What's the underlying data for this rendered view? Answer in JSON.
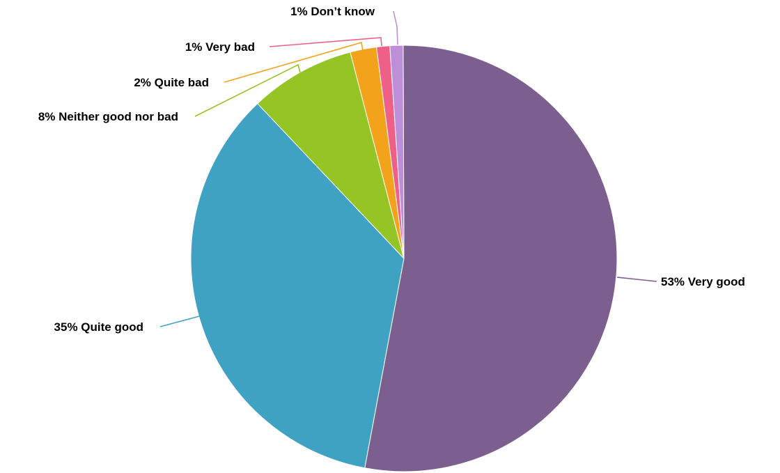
{
  "chart_data": {
    "type": "pie",
    "title": "",
    "slices": [
      {
        "category": "Very good",
        "value": 53,
        "percent_label": "53%",
        "label": "53% Very good",
        "color": "#7b5f8e"
      },
      {
        "category": "Quite good",
        "value": 35,
        "percent_label": "35%",
        "label": "35% Quite good",
        "color": "#3fa2c2"
      },
      {
        "category": "Neither good nor bad",
        "value": 8,
        "percent_label": "8%",
        "label": "8% Neither good nor bad",
        "color": "#95c425"
      },
      {
        "category": "Quite bad",
        "value": 2,
        "percent_label": "2%",
        "label": "2% Quite bad",
        "color": "#f2a31b"
      },
      {
        "category": "Very bad",
        "value": 1,
        "percent_label": "1%",
        "label": "1% Very bad",
        "color": "#ee6088"
      },
      {
        "category": "Don’t know",
        "value": 1,
        "percent_label": "1%",
        "label": "1% Don’t know",
        "color": "#bd8fd9"
      }
    ],
    "start_angle": "12 o'clock",
    "direction": "clockwise",
    "legend": "none (labels beside slices with leader lines)"
  }
}
